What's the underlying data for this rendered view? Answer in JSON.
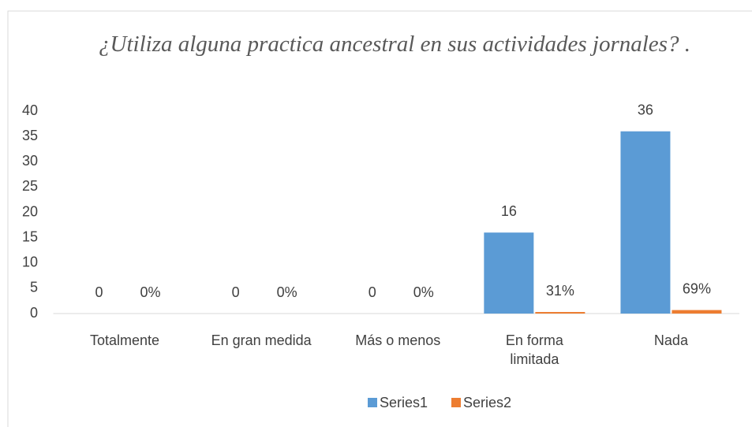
{
  "chart_data": {
    "type": "bar",
    "title": "¿Utiliza alguna practica ancestral en sus actividades jornales? .",
    "categories": [
      "Totalmente",
      "En gran medida",
      "Más o menos",
      "En forma limitada",
      "Nada"
    ],
    "series": [
      {
        "name": "Series1",
        "color": "#5b9bd5",
        "values": [
          0,
          0,
          0,
          16,
          36
        ]
      },
      {
        "name": "Series2",
        "color": "#ed7d31",
        "values": [
          0,
          0,
          0,
          0.31,
          0.69
        ],
        "value_labels": [
          "0%",
          "0%",
          "0%",
          "31%",
          "69%"
        ]
      }
    ],
    "ylim": [
      0,
      40
    ],
    "yticks": [
      0,
      5,
      10,
      15,
      20,
      25,
      30,
      35,
      40
    ],
    "grid": false,
    "legend": "bottom"
  }
}
